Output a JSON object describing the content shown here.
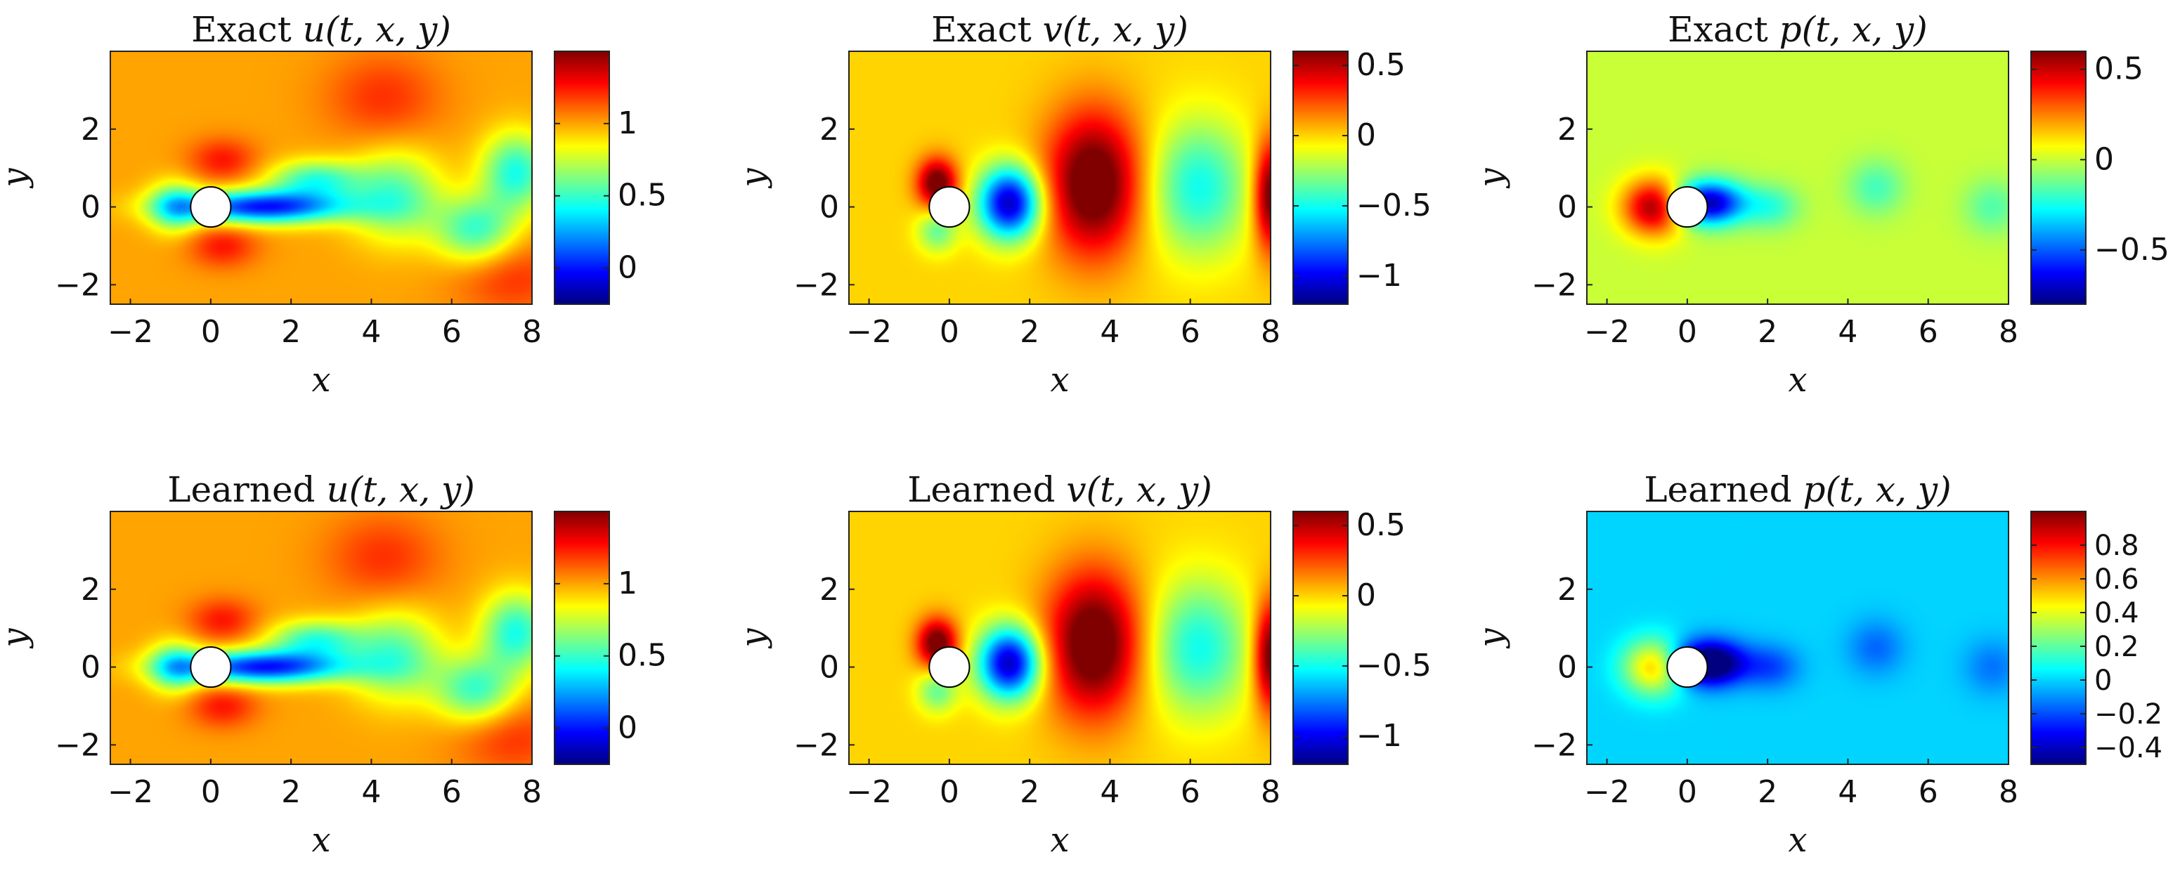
{
  "chart_data": [
    {
      "type": "heatmap",
      "field": "u",
      "row": "exact",
      "title": {
        "prefix": "Exact",
        "math": "u(t, x, y)"
      },
      "xlabel": "x",
      "ylabel": "y",
      "xlim": [
        -2.5,
        8
      ],
      "ylim": [
        -2.5,
        4
      ],
      "xticks": [
        "-2",
        "0",
        "2",
        "4",
        "6",
        "8"
      ],
      "yticks": [
        "2",
        "0",
        "-2"
      ],
      "colormap": "jet",
      "clim": [
        -0.25,
        1.5
      ],
      "colorbar_ticks": [
        "1",
        "0.5",
        "0"
      ],
      "obstacle": {
        "shape": "circle",
        "center": [
          0,
          0
        ],
        "radius": 0.5
      },
      "features": [
        {
          "x": 1.3,
          "y": 0.0,
          "sx": 1.5,
          "sy": 0.3,
          "amp": -1.0
        },
        {
          "x": 2.6,
          "y": 0.7,
          "sx": 0.8,
          "sy": 0.35,
          "amp": -0.5
        },
        {
          "x": 4.6,
          "y": 0.3,
          "sx": 0.8,
          "sy": 0.8,
          "amp": -0.45
        },
        {
          "x": 6.6,
          "y": -0.6,
          "sx": 0.7,
          "sy": 0.6,
          "amp": -0.5
        },
        {
          "x": 7.6,
          "y": 0.9,
          "sx": 0.6,
          "sy": 0.7,
          "amp": -0.55
        },
        {
          "x": 4.3,
          "y": 2.8,
          "sx": 1.0,
          "sy": 0.8,
          "amp": 0.2
        },
        {
          "x": 0.3,
          "y": 1.2,
          "sx": 0.6,
          "sy": 0.4,
          "amp": 0.25
        },
        {
          "x": 0.3,
          "y": -1.0,
          "sx": 0.6,
          "sy": 0.4,
          "amp": 0.25
        },
        {
          "x": 7.5,
          "y": -1.8,
          "sx": 1.0,
          "sy": 0.7,
          "amp": 0.2
        },
        {
          "x": -0.9,
          "y": 0.0,
          "sx": 0.45,
          "sy": 0.45,
          "amp": -0.45
        }
      ]
    },
    {
      "type": "heatmap",
      "field": "v",
      "row": "exact",
      "title": {
        "prefix": "Exact",
        "math": "v(t, x, y)"
      },
      "xlabel": "x",
      "ylabel": "y",
      "xlim": [
        -2.5,
        8
      ],
      "ylim": [
        -2.5,
        4
      ],
      "xticks": [
        "-2",
        "0",
        "2",
        "4",
        "6",
        "8"
      ],
      "yticks": [
        "2",
        "0",
        "-2"
      ],
      "colormap": "jet",
      "clim": [
        -1.2,
        0.6
      ],
      "colorbar_ticks": [
        "0.5",
        "0",
        "-0.5",
        "-1"
      ],
      "obstacle": {
        "shape": "circle",
        "center": [
          0,
          0
        ],
        "radius": 0.5
      },
      "features": [
        {
          "x": -0.3,
          "y": 0.6,
          "sx": 0.35,
          "sy": 0.45,
          "amp": 0.7
        },
        {
          "x": -0.3,
          "y": -0.6,
          "sx": 0.35,
          "sy": 0.4,
          "amp": -0.35
        },
        {
          "x": 1.5,
          "y": 0.1,
          "sx": 0.55,
          "sy": 0.65,
          "amp": -1.1
        },
        {
          "x": 3.6,
          "y": 0.6,
          "sx": 0.85,
          "sy": 1.3,
          "amp": 0.75
        },
        {
          "x": 6.2,
          "y": 0.5,
          "sx": 0.9,
          "sy": 1.2,
          "amp": -0.5
        },
        {
          "x": 8.0,
          "y": 0.3,
          "sx": 0.3,
          "sy": 1.0,
          "amp": 0.7
        }
      ]
    },
    {
      "type": "heatmap",
      "field": "p",
      "row": "exact",
      "title": {
        "prefix": "Exact",
        "math": "p(t, x, y)"
      },
      "xlabel": "x",
      "ylabel": "y",
      "xlim": [
        -2.5,
        8
      ],
      "ylim": [
        -2.5,
        4
      ],
      "xticks": [
        "-2",
        "0",
        "2",
        "4",
        "6",
        "8"
      ],
      "yticks": [
        "2",
        "0",
        "-2"
      ],
      "colormap": "jet",
      "clim": [
        -0.8,
        0.6
      ],
      "colorbar_ticks": [
        "0.5",
        "0",
        "-0.5"
      ],
      "obstacle": {
        "shape": "circle",
        "center": [
          0,
          0
        ],
        "radius": 0.5
      },
      "features": [
        {
          "x": -0.8,
          "y": 0.0,
          "sx": 0.55,
          "sy": 0.5,
          "amp": 0.6
        },
        {
          "x": 0.5,
          "y": 0.1,
          "sx": 0.65,
          "sy": 0.4,
          "amp": -0.75
        },
        {
          "x": 2.1,
          "y": 0.0,
          "sx": 0.5,
          "sy": 0.4,
          "amp": -0.2
        },
        {
          "x": 4.7,
          "y": 0.5,
          "sx": 0.5,
          "sy": 0.5,
          "amp": -0.18
        },
        {
          "x": 7.6,
          "y": 0.0,
          "sx": 0.5,
          "sy": 0.5,
          "amp": -0.16
        }
      ]
    },
    {
      "type": "heatmap",
      "field": "u",
      "row": "learned",
      "title": {
        "prefix": "Learned",
        "math": "u(t, x, y)"
      },
      "xlabel": "x",
      "ylabel": "y",
      "xlim": [
        -2.5,
        8
      ],
      "ylim": [
        -2.5,
        4
      ],
      "xticks": [
        "-2",
        "0",
        "2",
        "4",
        "6",
        "8"
      ],
      "yticks": [
        "2",
        "0",
        "-2"
      ],
      "colormap": "jet",
      "clim": [
        -0.25,
        1.5
      ],
      "colorbar_ticks": [
        "1",
        "0.5",
        "0"
      ],
      "obstacle": {
        "shape": "circle",
        "center": [
          0,
          0
        ],
        "radius": 0.5
      },
      "features": [
        {
          "x": 1.3,
          "y": 0.0,
          "sx": 1.5,
          "sy": 0.3,
          "amp": -1.0
        },
        {
          "x": 2.6,
          "y": 0.7,
          "sx": 0.8,
          "sy": 0.35,
          "amp": -0.5
        },
        {
          "x": 4.6,
          "y": 0.3,
          "sx": 0.8,
          "sy": 0.8,
          "amp": -0.45
        },
        {
          "x": 6.6,
          "y": -0.6,
          "sx": 0.7,
          "sy": 0.6,
          "amp": -0.5
        },
        {
          "x": 7.6,
          "y": 0.9,
          "sx": 0.6,
          "sy": 0.7,
          "amp": -0.55
        },
        {
          "x": 4.3,
          "y": 2.8,
          "sx": 1.0,
          "sy": 0.8,
          "amp": 0.2
        },
        {
          "x": 0.3,
          "y": 1.2,
          "sx": 0.6,
          "sy": 0.4,
          "amp": 0.25
        },
        {
          "x": 0.3,
          "y": -1.0,
          "sx": 0.6,
          "sy": 0.4,
          "amp": 0.25
        },
        {
          "x": 7.5,
          "y": -1.8,
          "sx": 1.0,
          "sy": 0.7,
          "amp": 0.2
        },
        {
          "x": -0.9,
          "y": 0.0,
          "sx": 0.45,
          "sy": 0.45,
          "amp": -0.45
        }
      ]
    },
    {
      "type": "heatmap",
      "field": "v",
      "row": "learned",
      "title": {
        "prefix": "Learned",
        "math": "v(t, x, y)"
      },
      "xlabel": "x",
      "ylabel": "y",
      "xlim": [
        -2.5,
        8
      ],
      "ylim": [
        -2.5,
        4
      ],
      "xticks": [
        "-2",
        "0",
        "2",
        "4",
        "6",
        "8"
      ],
      "yticks": [
        "2",
        "0",
        "-2"
      ],
      "colormap": "jet",
      "clim": [
        -1.2,
        0.6
      ],
      "colorbar_ticks": [
        "0.5",
        "0",
        "-0.5",
        "-1"
      ],
      "obstacle": {
        "shape": "circle",
        "center": [
          0,
          0
        ],
        "radius": 0.5
      },
      "features": [
        {
          "x": -0.3,
          "y": 0.6,
          "sx": 0.35,
          "sy": 0.45,
          "amp": 0.7
        },
        {
          "x": -0.3,
          "y": -0.6,
          "sx": 0.35,
          "sy": 0.4,
          "amp": -0.35
        },
        {
          "x": 1.5,
          "y": 0.1,
          "sx": 0.55,
          "sy": 0.65,
          "amp": -1.1
        },
        {
          "x": 3.6,
          "y": 0.6,
          "sx": 0.85,
          "sy": 1.3,
          "amp": 0.75
        },
        {
          "x": 6.2,
          "y": 0.5,
          "sx": 0.9,
          "sy": 1.2,
          "amp": -0.5
        },
        {
          "x": 8.0,
          "y": 0.3,
          "sx": 0.3,
          "sy": 1.0,
          "amp": 0.7
        }
      ]
    },
    {
      "type": "heatmap",
      "field": "p",
      "row": "learned",
      "title": {
        "prefix": "Learned",
        "math": "p(t, x, y)"
      },
      "xlabel": "x",
      "ylabel": "y",
      "xlim": [
        -2.5,
        8
      ],
      "ylim": [
        -2.5,
        4
      ],
      "xticks": [
        "-2",
        "0",
        "2",
        "4",
        "6",
        "8"
      ],
      "yticks": [
        "2",
        "0",
        "-2"
      ],
      "colormap": "jet",
      "clim": [
        -0.5,
        1.0
      ],
      "colorbar_ticks": [
        "0.8",
        "0.6",
        "0.4",
        "0.2",
        "0",
        "-0.2",
        "-0.4"
      ],
      "obstacle": {
        "shape": "circle",
        "center": [
          0,
          0
        ],
        "radius": 0.5
      },
      "features": [
        {
          "x": -0.8,
          "y": 0.0,
          "sx": 0.55,
          "sy": 0.5,
          "amp": 0.55
        },
        {
          "x": 0.5,
          "y": 0.1,
          "sx": 0.65,
          "sy": 0.4,
          "amp": -0.7
        },
        {
          "x": 2.1,
          "y": 0.0,
          "sx": 0.5,
          "sy": 0.4,
          "amp": -0.2
        },
        {
          "x": 4.7,
          "y": 0.5,
          "sx": 0.5,
          "sy": 0.5,
          "amp": -0.16
        },
        {
          "x": 7.6,
          "y": 0.0,
          "sx": 0.5,
          "sy": 0.5,
          "amp": -0.14
        }
      ]
    }
  ]
}
